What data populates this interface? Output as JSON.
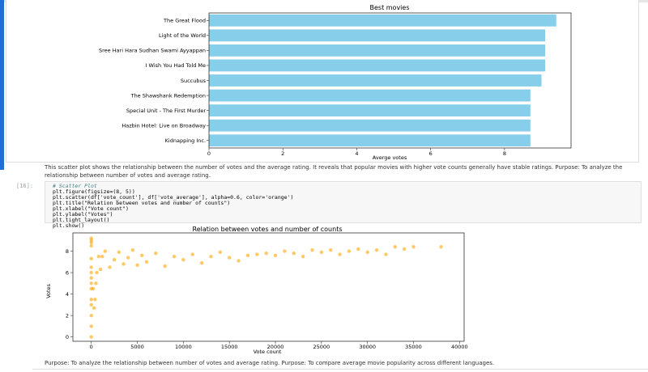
{
  "bar_chart": {
    "chart_data": {
      "type": "bar",
      "orientation": "horizontal",
      "title": "Best movies",
      "xlabel": "Averge votes",
      "ylabel": "",
      "categories": [
        "The Great Flood",
        "Light of the World",
        "Sree Hari Hara Sudhan Swami Ayyappan",
        "I Wish You Had Told Me",
        "Succubus",
        "The Shawshank Redemption",
        "Special Unit - The First Murder",
        "Hazbin Hotel: Live on Broadway",
        "Kidnapping Inc."
      ],
      "values": [
        9.4,
        9.1,
        9.1,
        9.1,
        9.0,
        8.7,
        8.7,
        8.7,
        8.7
      ],
      "xlim": [
        0,
        9.8
      ],
      "xticks": [
        "0",
        "2",
        "4",
        "6",
        "8"
      ],
      "color": "#87ceeb"
    }
  },
  "markdown_text": "This scatter plot shows the relationship between the number of votes and the average rating. It reveals that popular movies with higher vote counts generally have stable ratings. Purpose: To analyze the relationship between number of votes and average rating.",
  "code_cell": {
    "prompt": "[16]:",
    "lines": [
      "# Scatter Plot",
      "plt.figure(figsize=(8, 5))",
      "plt.scatter(df['vote_count'], df['vote_average'], alpha=0.6, color='orange')",
      "plt.title(\"Relation between votes and number of counts\")",
      "plt.xlabel(\"Vote count\")",
      "plt.ylabel(\"Votes\")",
      "plt.tight_layout()",
      "plt.show()"
    ]
  },
  "scatter_chart": {
    "chart_data": {
      "type": "scatter",
      "title": "Relation between votes and number of counts",
      "xlabel": "Vote count",
      "ylabel": "Votes",
      "xlim": [
        -2000,
        40500
      ],
      "ylim": [
        -0.4,
        9.7
      ],
      "xticks": [
        "0",
        "5000",
        "10000",
        "15000",
        "20000",
        "25000",
        "30000",
        "35000",
        "40000"
      ],
      "yticks": [
        "0",
        "2",
        "4",
        "6",
        "8"
      ],
      "color": "#ffa500",
      "points": [
        [
          0,
          0
        ],
        [
          0,
          1
        ],
        [
          0,
          2
        ],
        [
          0,
          3
        ],
        [
          0,
          9
        ],
        [
          0,
          8.8
        ],
        [
          0,
          9.2
        ],
        [
          0,
          8.5
        ],
        [
          0,
          7.3
        ],
        [
          0,
          6.5
        ],
        [
          0,
          5.5
        ],
        [
          0,
          4.5
        ],
        [
          0,
          3.5
        ],
        [
          0,
          5
        ],
        [
          0,
          6
        ],
        [
          200,
          4.5
        ],
        [
          300,
          2.7
        ],
        [
          400,
          3.5
        ],
        [
          500,
          5
        ],
        [
          600,
          6
        ],
        [
          800,
          7.5
        ],
        [
          1000,
          6.3
        ],
        [
          1200,
          7.5
        ],
        [
          1500,
          8
        ],
        [
          2000,
          6.5
        ],
        [
          2500,
          7.2
        ],
        [
          3000,
          7.9
        ],
        [
          3500,
          6.8
        ],
        [
          4000,
          7.4
        ],
        [
          4500,
          8.1
        ],
        [
          5000,
          6.7
        ],
        [
          5500,
          7.6
        ],
        [
          6000,
          7
        ],
        [
          7000,
          7.8
        ],
        [
          8000,
          6.6
        ],
        [
          9000,
          7.5
        ],
        [
          10000,
          7.2
        ],
        [
          11000,
          7.7
        ],
        [
          12000,
          6.9
        ],
        [
          13000,
          7.5
        ],
        [
          14000,
          7.9
        ],
        [
          15000,
          7.4
        ],
        [
          16000,
          7.1
        ],
        [
          17000,
          7.6
        ],
        [
          18000,
          7.7
        ],
        [
          19000,
          7.8
        ],
        [
          20000,
          7.6
        ],
        [
          21000,
          8
        ],
        [
          22000,
          7.8
        ],
        [
          23000,
          7.5
        ],
        [
          24000,
          8.1
        ],
        [
          25000,
          7.9
        ],
        [
          26000,
          8.1
        ],
        [
          27000,
          7.7
        ],
        [
          28000,
          8
        ],
        [
          29000,
          8.2
        ],
        [
          30000,
          7.9
        ],
        [
          31000,
          8.1
        ],
        [
          32000,
          7.7
        ],
        [
          33000,
          8.4
        ],
        [
          34000,
          8.2
        ],
        [
          35000,
          8.4
        ],
        [
          38000,
          8.4
        ]
      ]
    }
  },
  "footer_text": "Purpose: To analyze the relationship between number of votes and average rating. Purpose: To compare average movie popularity across different languages."
}
